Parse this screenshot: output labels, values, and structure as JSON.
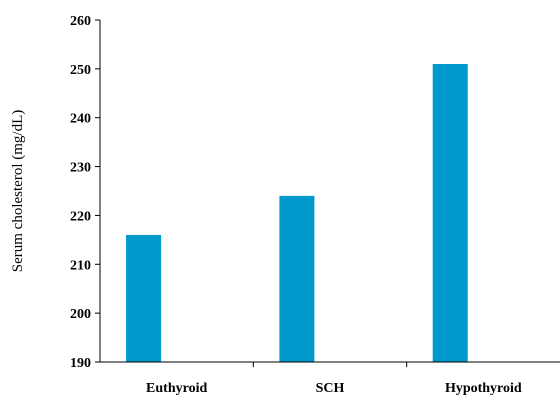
{
  "chart_data": {
    "type": "bar",
    "categories": [
      "Euthyroid",
      "SCH",
      "Hypothyroid"
    ],
    "values": [
      216,
      224,
      251
    ],
    "title": "",
    "xlabel": "",
    "ylabel": "Serum cholesterol (mg/dL)",
    "ylim": [
      190,
      260
    ],
    "yticks": [
      190,
      200,
      210,
      220,
      230,
      240,
      250,
      260
    ],
    "bar_color": "#0099cc",
    "grid": false,
    "legend": "none"
  }
}
